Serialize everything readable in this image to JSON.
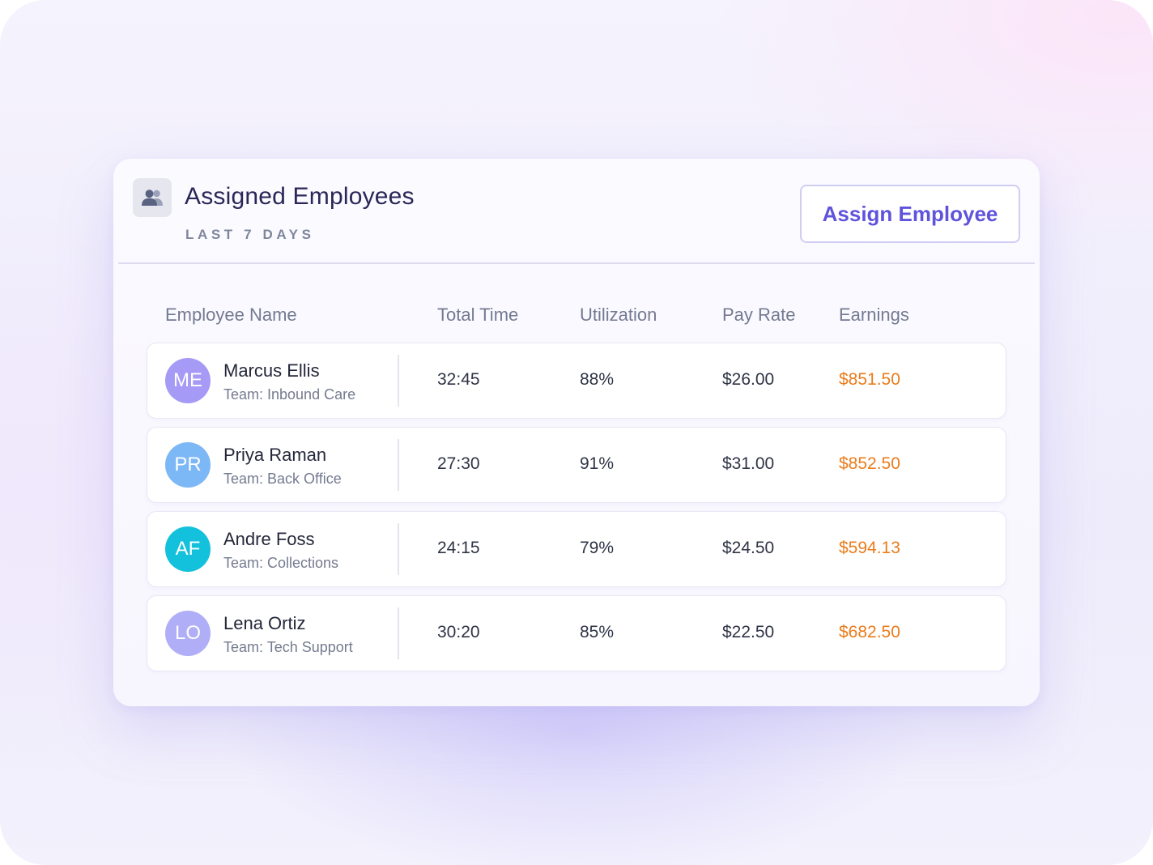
{
  "header": {
    "icon": "users-icon",
    "title": "Assigned Employees",
    "subtitle": "LAST 7 DAYS",
    "assign_button_label": "Assign Employee"
  },
  "table": {
    "columns": [
      "Employee Name",
      "Total Time",
      "Utilization",
      "Pay Rate",
      "Earnings"
    ],
    "rows": [
      {
        "initials": "ME",
        "name": "Marcus Ellis",
        "team": "Team: Inbound Care",
        "total_time": "32:45",
        "utilization": "88%",
        "pay_rate": "$26.00",
        "earnings": "$851.50",
        "avatar_color": "#a59af5"
      },
      {
        "initials": "PR",
        "name": "Priya Raman",
        "team": "Team: Back Office",
        "total_time": "27:30",
        "utilization": "91%",
        "pay_rate": "$31.00",
        "earnings": "$852.50",
        "avatar_color": "#7db8f6"
      },
      {
        "initials": "AF",
        "name": "Andre Foss",
        "team": "Team: Collections",
        "total_time": "24:15",
        "utilization": "79%",
        "pay_rate": "$24.50",
        "earnings": "$594.13",
        "avatar_color": "#14c1dc"
      },
      {
        "initials": "LO",
        "name": "Lena Ortiz",
        "team": "Team: Tech Support",
        "total_time": "30:20",
        "utilization": "85%",
        "pay_rate": "$22.50",
        "earnings": "$682.50",
        "avatar_color": "#b0aef6"
      }
    ]
  },
  "colors": {
    "accent": "#5f53dc",
    "earnings": "#ea7c1c",
    "title": "#2a2758"
  }
}
